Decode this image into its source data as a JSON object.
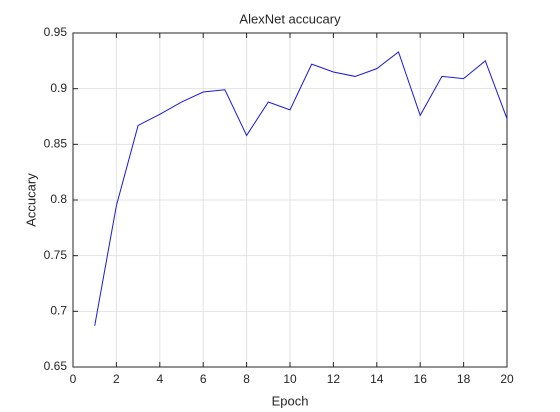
{
  "chart_data": {
    "type": "line",
    "title": "AlexNet accucary",
    "x_label": "Epoch",
    "y_label": "Accucary",
    "x": [
      1,
      2,
      3,
      4,
      5,
      6,
      7,
      8,
      9,
      10,
      11,
      12,
      13,
      14,
      15,
      16,
      17,
      18,
      19,
      20
    ],
    "series": [
      {
        "color": "#1a1adb",
        "values": [
          0.687,
          0.795,
          0.867,
          0.877,
          0.888,
          0.897,
          0.899,
          0.858,
          0.888,
          0.881,
          0.922,
          0.915,
          0.911,
          0.918,
          0.933,
          0.876,
          0.911,
          0.909,
          0.925,
          0.873
        ]
      }
    ],
    "xlim": [
      0,
      20
    ],
    "xticks": [
      0,
      2,
      4,
      6,
      8,
      10,
      12,
      14,
      16,
      18,
      20
    ],
    "ylim": [
      0.65,
      0.95
    ],
    "yticks": [
      0.65,
      0.7,
      0.75,
      0.8,
      0.85,
      0.9,
      0.95
    ],
    "grid": true
  }
}
